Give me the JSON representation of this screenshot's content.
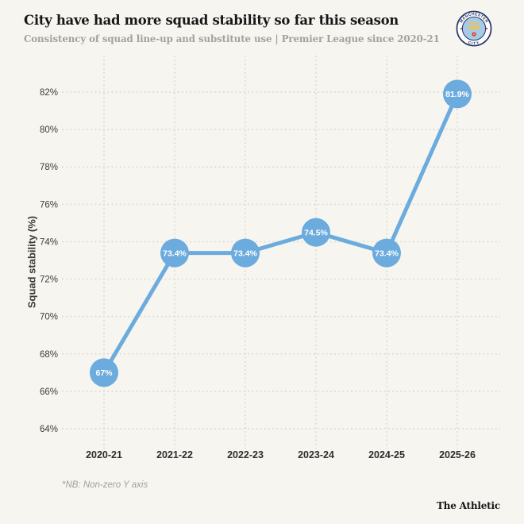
{
  "header": {
    "title": "City have had more squad stability so far this season",
    "subtitle": "Consistency of squad line-up and substitute use | Premier League since 2020-21",
    "badge": "Manchester City crest"
  },
  "chart_data": {
    "type": "line",
    "title": "City have had more squad stability so far this season",
    "categories": [
      "2020-21",
      "2021-22",
      "2022-23",
      "2023-24",
      "2024-25",
      "2025-26"
    ],
    "values": [
      67,
      73.4,
      73.4,
      74.5,
      73.4,
      81.9
    ],
    "point_labels": [
      "67%",
      "73.4%",
      "73.4%",
      "74.5%",
      "73.4%",
      "81.9%"
    ],
    "xlabel": "",
    "ylabel": "Squad stability (%)",
    "ylim": [
      64,
      82
    ],
    "yticks": [
      "64%",
      "66%",
      "68%",
      "70%",
      "72%",
      "74%",
      "76%",
      "78%",
      "80%",
      "82%"
    ],
    "grid": true,
    "legend": false
  },
  "footer": {
    "note": "*NB: Non-zero Y axis",
    "brand": "The Athletic"
  },
  "colors": {
    "accent": "#6CABDD",
    "grid": "#dcdbd4",
    "background": "#f6f5f0",
    "navy": "#26356A",
    "gold": "#F2C14E",
    "rose_red": "#DD3A34",
    "title_text": "#171717",
    "muted_text": "#a3a19b",
    "tick_text": "#3c3c3c",
    "xlabel_text": "#2d2d2d",
    "point_label_text": "#ffffff"
  }
}
